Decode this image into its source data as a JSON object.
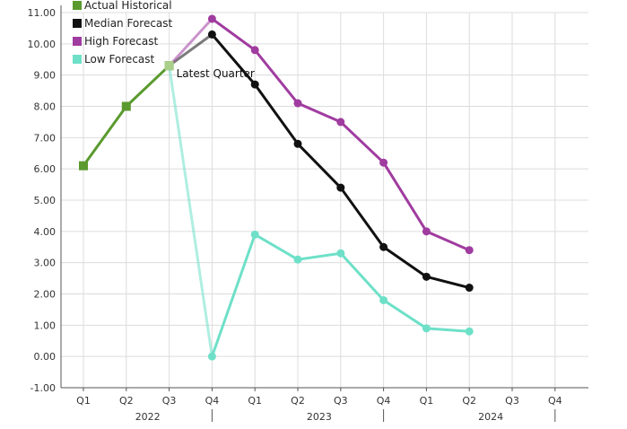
{
  "chart_data": {
    "type": "line",
    "x_quarters": [
      "Q1",
      "Q2",
      "Q3",
      "Q4",
      "Q1",
      "Q2",
      "Q3",
      "Q4",
      "Q1",
      "Q2",
      "Q3",
      "Q4"
    ],
    "x_years": [
      {
        "label": "2022",
        "start": 0,
        "end": 3
      },
      {
        "label": "2023",
        "start": 4,
        "end": 7
      },
      {
        "label": "2024",
        "start": 8,
        "end": 11
      }
    ],
    "ylim": [
      -1,
      11
    ],
    "yticks": [
      "-1.00",
      "0.00",
      "1.00",
      "2.00",
      "3.00",
      "4.00",
      "5.00",
      "6.00",
      "7.00",
      "8.00",
      "9.00",
      "10.00",
      "11.00"
    ],
    "grid": true,
    "legend_position": "top-left",
    "series": [
      {
        "name": "Actual Historical",
        "color": "#5a9a2e",
        "marker": "square",
        "start_index": 0,
        "values": [
          6.1,
          8.0,
          9.3
        ]
      },
      {
        "name": "Median Forecast",
        "color": "#111111",
        "marker": "circle",
        "start_index": 3,
        "values": [
          10.3,
          8.7,
          6.8,
          5.4,
          3.5,
          2.55,
          2.2
        ]
      },
      {
        "name": "High Forecast",
        "color": "#a03ca0",
        "marker": "circle",
        "start_index": 3,
        "values": [
          10.8,
          9.8,
          8.1,
          7.5,
          6.2,
          4.0,
          3.4
        ]
      },
      {
        "name": "Low Forecast",
        "color": "#6ee0c8",
        "marker": "circle",
        "start_index": 3,
        "values": [
          0.0,
          3.9,
          3.1,
          3.3,
          1.8,
          0.9,
          0.8
        ]
      }
    ],
    "annotations": [
      {
        "text": "Latest Quarter",
        "x_index": 2,
        "y": 9.3
      }
    ]
  }
}
